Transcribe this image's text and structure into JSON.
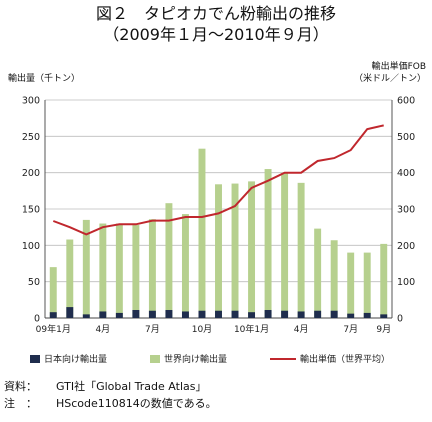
{
  "title_line1": "図２　タピオカでん粉輸出の推移",
  "title_line2": "（2009年１月～2010年９月）",
  "left_axis_title": "輸出量（千トン）",
  "right_axis_title_1": "輸出単価FOB",
  "right_axis_title_2": "（米ドル／トン）",
  "legend": {
    "japan": "日本向け輸出量",
    "world": "世界向け輸出量",
    "price": "輸出単価（世界平均）"
  },
  "notes": {
    "source_key": "資料：",
    "source_val": "GTI社「Global Trade Atlas」",
    "note_key": "注　：",
    "note_val": "HScode110814の数値である。"
  },
  "colors": {
    "japan": "#1f2d4d",
    "world": "#b6d08e",
    "price": "#c0272d"
  },
  "chart_data": {
    "type": "bar",
    "x_tick_labels": [
      "09年1月",
      "4月",
      "7月",
      "10月",
      "10年1月",
      "4月",
      "7月",
      "9月"
    ],
    "x_tick_positions": [
      1,
      4,
      7,
      10,
      13,
      16,
      19,
      21
    ],
    "categories": [
      "2009-01",
      "2009-02",
      "2009-03",
      "2009-04",
      "2009-05",
      "2009-06",
      "2009-07",
      "2009-08",
      "2009-09",
      "2009-10",
      "2009-11",
      "2009-12",
      "2010-01",
      "2010-02",
      "2010-03",
      "2010-04",
      "2010-05",
      "2010-06",
      "2010-07",
      "2010-08",
      "2010-09"
    ],
    "series": [
      {
        "name": "世界向け輸出量",
        "axis": "left",
        "values": [
          70,
          108,
          135,
          130,
          130,
          128,
          136,
          158,
          143,
          233,
          184,
          185,
          188,
          205,
          200,
          186,
          123,
          107,
          90,
          90,
          102
        ]
      },
      {
        "name": "日本向け輸出量",
        "axis": "left",
        "values": [
          8,
          15,
          5,
          9,
          7,
          11,
          10,
          11,
          9,
          10,
          10,
          10,
          8,
          11,
          10,
          9,
          10,
          10,
          6,
          7,
          5
        ]
      },
      {
        "name": "輸出単価（世界平均）",
        "axis": "right",
        "type": "line",
        "values": [
          267,
          250,
          230,
          250,
          258,
          258,
          268,
          268,
          278,
          278,
          288,
          308,
          358,
          378,
          400,
          400,
          432,
          440,
          462,
          520,
          530
        ]
      }
    ],
    "left_ylim": [
      0,
      300
    ],
    "left_ticks": [
      0,
      50,
      100,
      150,
      200,
      250,
      300
    ],
    "right_ylim": [
      0,
      600
    ],
    "right_ticks": [
      0,
      100,
      200,
      300,
      400,
      500,
      600
    ],
    "grid": true,
    "legend_position": "bottom"
  }
}
